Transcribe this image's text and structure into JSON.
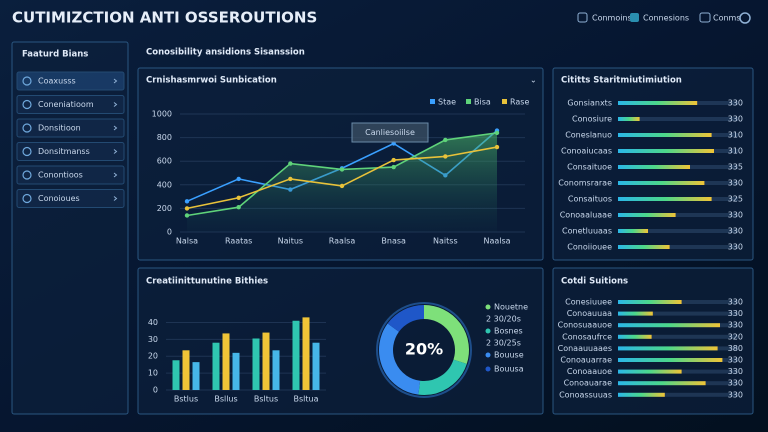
{
  "header": {
    "title": "CUTIMIZCTION ANTI OSSEROUTIONS",
    "menu": [
      "Conmoins",
      "Connesions",
      "Conms"
    ]
  },
  "sidebar": {
    "title": "Faaturd Bians",
    "items": [
      "Coaxusss",
      "Coneniatioom",
      "Donsitioon",
      "Donsitmanss",
      "Conontioos",
      "Conoioues"
    ]
  },
  "section_title": "Conosibility ansidions Sisanssion",
  "chart_data": [
    {
      "type": "line",
      "title": "Crnishasmrwoi Sunbication",
      "categories": [
        "Nalsa",
        "Raatas",
        "Naitus",
        "Raalsa",
        "Bnasa",
        "Naitss",
        "Naalsa"
      ],
      "series": [
        {
          "name": "Stae",
          "color": "#3aa0ff",
          "values": [
            260,
            450,
            360,
            540,
            750,
            480,
            860
          ]
        },
        {
          "name": "Bisa",
          "color": "#5fd37a",
          "values": [
            140,
            210,
            580,
            530,
            550,
            780,
            840
          ]
        },
        {
          "name": "Rase",
          "color": "#e8c23a",
          "values": [
            200,
            290,
            450,
            390,
            610,
            640,
            720
          ]
        }
      ],
      "ylim": [
        0,
        1000
      ],
      "yticks": [
        0,
        200,
        400,
        600,
        800,
        1000
      ],
      "annotation": "Canliesoiilse"
    },
    {
      "type": "bar",
      "title": "Creatiinittunutine Bithies",
      "categories": [
        "Bstlus",
        "Bsllus",
        "Bsltus",
        "Bsltua"
      ],
      "series": [
        {
          "color": "#2fc6b0",
          "values": [
            17.6,
            28,
            30.5,
            41
          ]
        },
        {
          "color": "#f0c437",
          "values": [
            23.5,
            33.5,
            34,
            43
          ]
        },
        {
          "color": "#46b6e8",
          "values": [
            16.5,
            22,
            23.5,
            28
          ]
        }
      ],
      "ylim": [
        0,
        45
      ],
      "yticks": [
        0,
        10,
        20,
        30,
        40
      ]
    },
    {
      "type": "pie",
      "center_label": "20%",
      "series": [
        {
          "name": "Nouetne",
          "color": "#7ee07a",
          "value": 30,
          "note": "2 30/20s"
        },
        {
          "name": "Bosnes",
          "color": "#2fc6b0",
          "value": 22,
          "note": "2 30/25s"
        },
        {
          "name": "Bouuse",
          "color": "#3a8cf0",
          "value": 33
        },
        {
          "name": "Bouusa",
          "color": "#1f57c8",
          "value": 15
        }
      ]
    }
  ],
  "lists": [
    {
      "title": "Cititts Staritmiutimiution",
      "rows": [
        {
          "name": "Gonsianxts",
          "amount": 330,
          "level": 66
        },
        {
          "name": "Conosiure",
          "amount": 330,
          "level": 18
        },
        {
          "name": "Coneslanuo",
          "amount": 310,
          "level": 78
        },
        {
          "name": "Conoaiucaas",
          "amount": 310,
          "level": 80
        },
        {
          "name": "Consaituoe",
          "amount": 335,
          "level": 60
        },
        {
          "name": "Conomsrarae",
          "amount": 330,
          "level": 72
        },
        {
          "name": "Consaituos",
          "amount": 325,
          "level": 78
        },
        {
          "name": "Conoaaluaae",
          "amount": 330,
          "level": 48
        },
        {
          "name": "Conetluuaas",
          "amount": 330,
          "level": 25
        },
        {
          "name": "Conoiiouee",
          "amount": 330,
          "level": 43
        }
      ]
    },
    {
      "title": "Cotdi Suitions",
      "rows": [
        {
          "name": "Conesiuuee",
          "amount": 330,
          "level": 53
        },
        {
          "name": "Conoauuaa",
          "amount": 330,
          "level": 29
        },
        {
          "name": "Conosuaauoe",
          "amount": 330,
          "level": 85
        },
        {
          "name": "Conosaufrce",
          "amount": 320,
          "level": 28
        },
        {
          "name": "Conaauuaaes",
          "amount": 380,
          "level": 83
        },
        {
          "name": "Conoauarrae",
          "amount": 330,
          "level": 87
        },
        {
          "name": "Conoaauoe",
          "amount": 330,
          "level": 53
        },
        {
          "name": "Conoauarae",
          "amount": 330,
          "level": 73
        },
        {
          "name": "Conoassuuas",
          "amount": 330,
          "level": 39
        }
      ]
    }
  ]
}
